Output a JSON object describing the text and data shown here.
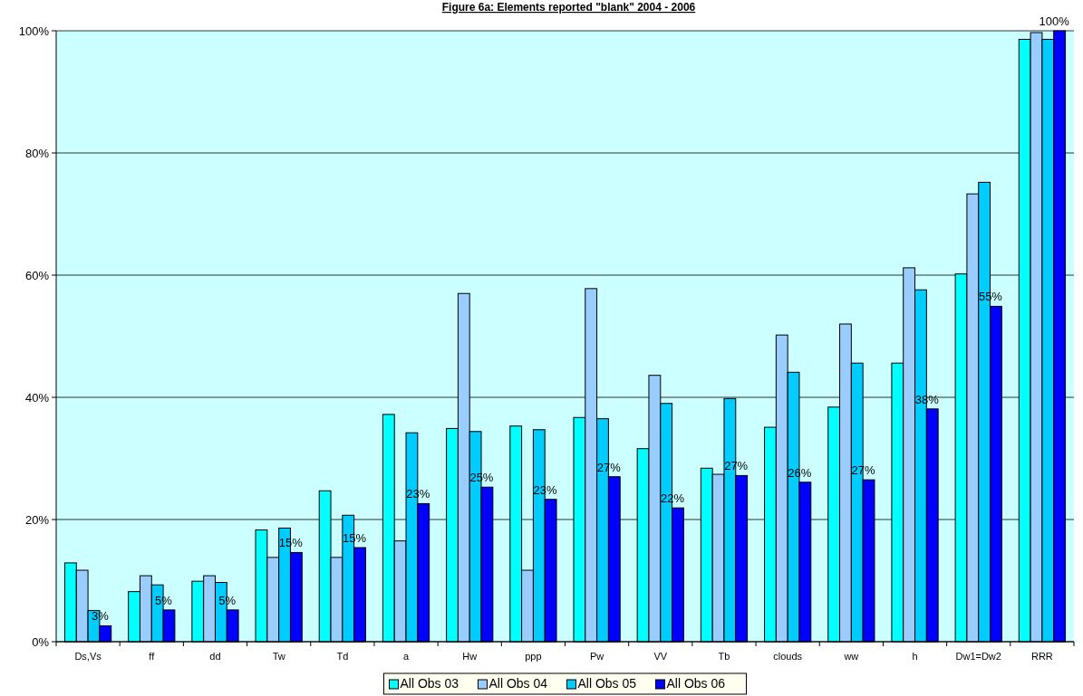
{
  "chart_data": {
    "type": "bar",
    "title": "Figure 6a: Elements reported \"blank\" 2004 - 2006",
    "categories": [
      "Ds,Vs",
      "ff",
      "dd",
      "Tw",
      "Td",
      "a",
      "Hw",
      "ppp",
      "Pw",
      "VV",
      "Tb",
      "clouds",
      "ww",
      "h",
      "Dw1=Dw2",
      "RRR"
    ],
    "series": [
      {
        "name": "All Obs 03",
        "color": "#00ffff",
        "values": [
          12.9,
          8.2,
          9.9,
          18.3,
          24.7,
          37.2,
          34.9,
          35.3,
          36.7,
          31.6,
          28.4,
          35.1,
          38.4,
          45.6,
          60.2,
          98.6
        ]
      },
      {
        "name": "All Obs 04",
        "color": "#99ccff",
        "values": [
          11.7,
          10.8,
          10.8,
          13.8,
          13.8,
          16.5,
          57.0,
          11.7,
          57.8,
          43.6,
          27.4,
          50.2,
          52.0,
          61.2,
          73.3,
          99.7
        ]
      },
      {
        "name": "All Obs 05",
        "color": "#00ccff",
        "values": [
          5.1,
          9.3,
          9.7,
          18.6,
          20.7,
          34.2,
          34.4,
          34.7,
          36.5,
          39.0,
          39.8,
          44.1,
          45.6,
          57.6,
          75.2,
          98.6
        ]
      },
      {
        "name": "All Obs 06",
        "color": "#0000ff",
        "values": [
          2.6,
          5.2,
          5.2,
          14.6,
          15.4,
          22.6,
          25.3,
          23.3,
          27.0,
          21.9,
          27.2,
          26.1,
          26.5,
          38.1,
          54.9,
          100
        ],
        "value_labels": [
          "3%",
          "5%",
          "5%",
          "15%",
          "15%",
          "23%",
          "25%",
          "23%",
          "27%",
          "22%",
          "27%",
          "26%",
          "27%",
          "38%",
          "55%",
          "100%"
        ]
      }
    ],
    "ylim": [
      0,
      100
    ],
    "yticks": [
      {
        "value": 0,
        "label": "0%"
      },
      {
        "value": 20,
        "label": "20%"
      },
      {
        "value": 40,
        "label": "40%"
      },
      {
        "value": 60,
        "label": "60%"
      },
      {
        "value": 80,
        "label": "80%"
      },
      {
        "value": 100,
        "label": "100%"
      }
    ],
    "grid": "y",
    "legend": "bottom"
  }
}
